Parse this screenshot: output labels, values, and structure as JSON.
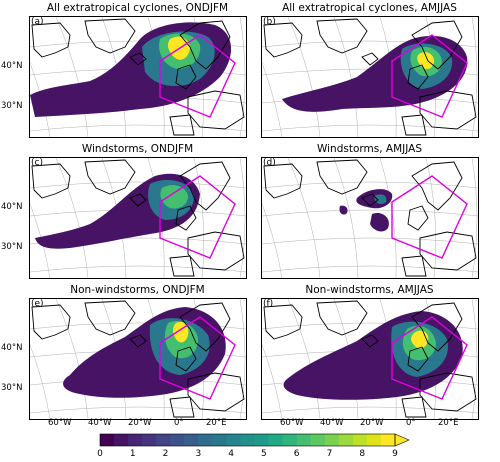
{
  "panels": [
    {
      "letter": "(a)",
      "title": "All extratropical cyclones, ONDJFM"
    },
    {
      "letter": "(b)",
      "title": "All extratropical cyclones, AMJJAS"
    },
    {
      "letter": "(c)",
      "title": "Windstorms, ONDJFM"
    },
    {
      "letter": "(d)",
      "title": "Windstorms, AMJJAS"
    },
    {
      "letter": "(e)",
      "title": "Non-windstorms, ONDJFM"
    },
    {
      "letter": "(f)",
      "title": "Non-windstorms, AMJJAS"
    }
  ],
  "lat_labels": [
    "40°N",
    "30°N"
  ],
  "lon_labels": [
    "60°W",
    "40°W",
    "20°W",
    "0°",
    "20°E"
  ],
  "colorbar": {
    "ticks": [
      "0",
      "1",
      "2",
      "3",
      "4",
      "5",
      "6",
      "7",
      "8",
      "9"
    ],
    "colors": [
      "#440154",
      "#471365",
      "#482475",
      "#463480",
      "#414487",
      "#3b528b",
      "#355f8d",
      "#2f6c8e",
      "#2a788e",
      "#25848e",
      "#21918c",
      "#1e9c89",
      "#22a884",
      "#2fb47c",
      "#44bf70",
      "#5ec962",
      "#7ad151",
      "#9bd93c",
      "#bddf26",
      "#dfe318",
      "#fde725"
    ],
    "extend": "max"
  },
  "colors": {
    "box": "#e000e0",
    "coast": "#000000",
    "grid": "#b0b0b0"
  }
}
